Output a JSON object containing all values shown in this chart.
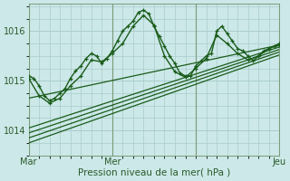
{
  "xlabel": "Pression niveau de la mer( hPa )",
  "bg_color": "#cce8e8",
  "grid_color": "#aacccc",
  "line_color": "#1a5c1a",
  "ylim": [
    1013.55,
    1016.55
  ],
  "xlim": [
    0,
    48
  ],
  "xtick_positions": [
    0,
    16,
    32,
    48
  ],
  "xtick_labels": [
    "Mar",
    "Mer",
    "Jeu"
  ],
  "xtick_locs": [
    0,
    16,
    48
  ],
  "ytick_positions": [
    1014,
    1015,
    1016
  ],
  "ytick_labels": [
    "1014",
    "1015",
    "1016"
  ],
  "vlines": [
    0,
    16,
    32,
    48
  ],
  "line1_x": [
    0,
    1,
    2,
    3,
    4,
    5,
    6,
    7,
    8,
    9,
    10,
    11,
    12,
    13,
    14,
    15,
    16,
    17,
    18,
    19,
    20,
    21,
    22,
    23,
    24,
    25,
    26,
    27,
    28,
    29,
    30,
    31,
    32,
    33,
    34,
    35,
    36,
    37,
    38,
    39,
    40,
    41,
    42,
    43,
    44,
    45,
    46,
    47,
    48
  ],
  "line1_y": [
    1015.1,
    1015.05,
    1014.9,
    1014.7,
    1014.6,
    1014.65,
    1014.75,
    1014.85,
    1015.05,
    1015.2,
    1015.3,
    1015.45,
    1015.55,
    1015.5,
    1015.35,
    1015.45,
    1015.6,
    1015.8,
    1016.0,
    1016.1,
    1016.2,
    1016.38,
    1016.42,
    1016.35,
    1016.1,
    1015.9,
    1015.7,
    1015.5,
    1015.35,
    1015.15,
    1015.1,
    1015.1,
    1015.3,
    1015.4,
    1015.5,
    1015.55,
    1016.0,
    1016.1,
    1015.95,
    1015.8,
    1015.65,
    1015.6,
    1015.5,
    1015.4,
    1015.5,
    1015.6,
    1015.65,
    1015.7,
    1015.75
  ],
  "line2_x": [
    0,
    2,
    4,
    6,
    8,
    10,
    12,
    14,
    16,
    18,
    20,
    22,
    24,
    26,
    28,
    30,
    32,
    34,
    36,
    38,
    40,
    42,
    44,
    46,
    48
  ],
  "line2_y": [
    1015.05,
    1014.7,
    1014.55,
    1014.65,
    1014.9,
    1015.1,
    1015.42,
    1015.38,
    1015.55,
    1015.75,
    1016.1,
    1016.32,
    1016.12,
    1015.5,
    1015.18,
    1015.07,
    1015.25,
    1015.45,
    1015.92,
    1015.75,
    1015.55,
    1015.42,
    1015.5,
    1015.65,
    1015.72
  ],
  "diag_lines": [
    {
      "x": [
        0,
        48
      ],
      "y": [
        1014.65,
        1015.72
      ]
    },
    {
      "x": [
        0,
        48
      ],
      "y": [
        1013.75,
        1015.52
      ]
    },
    {
      "x": [
        0,
        48
      ],
      "y": [
        1013.85,
        1015.58
      ]
    },
    {
      "x": [
        0,
        48
      ],
      "y": [
        1013.95,
        1015.63
      ]
    },
    {
      "x": [
        0,
        48
      ],
      "y": [
        1014.05,
        1015.68
      ]
    }
  ]
}
